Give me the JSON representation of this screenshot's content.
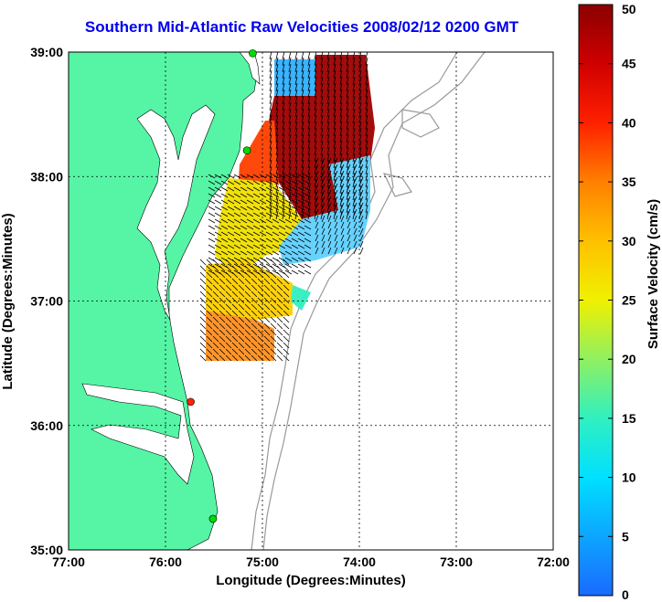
{
  "chart_data": {
    "type": "heatmap",
    "title": "Southern Mid-Atlantic Raw Velocities 2008/02/12 0200 GMT",
    "xlabel": "Longitude (Degrees:Minutes)",
    "ylabel": "Latitude (Degrees:Minutes)",
    "x_ticks": [
      "77:00",
      "76:00",
      "75:00",
      "74:00",
      "73:00",
      "72:00"
    ],
    "y_ticks": [
      "39:00",
      "38:00",
      "37:00",
      "36:00",
      "35:00"
    ],
    "xlim": [
      -77,
      -72
    ],
    "ylim": [
      35,
      39
    ],
    "grid": true,
    "colorbar": {
      "label": "Surface Velocity (cm/s)",
      "range": [
        0,
        50
      ],
      "ticks": [
        0,
        5,
        10,
        15,
        20,
        25,
        30,
        35,
        40,
        45,
        50
      ]
    },
    "stations": [
      {
        "lon": -75.1,
        "lat": 38.99,
        "color": "#00dd00"
      },
      {
        "lon": -75.16,
        "lat": 38.21,
        "color": "#00dd00"
      },
      {
        "lon": -75.74,
        "lat": 36.19,
        "color": "#ff2200"
      },
      {
        "lon": -75.51,
        "lat": 35.25,
        "color": "#00dd00"
      }
    ]
  },
  "colors": {
    "land": "#55f5a5",
    "title": "#0000ee"
  }
}
